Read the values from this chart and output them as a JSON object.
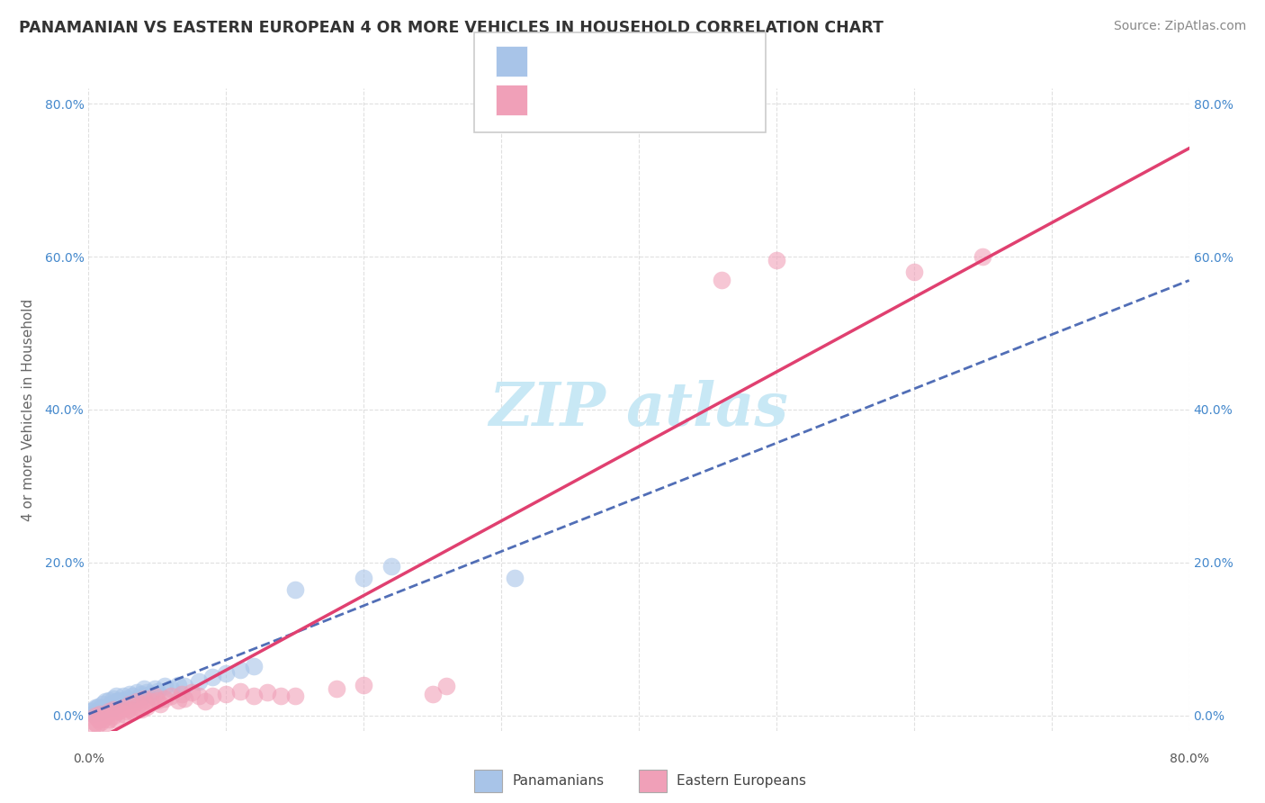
{
  "title": "PANAMANIAN VS EASTERN EUROPEAN 4 OR MORE VEHICLES IN HOUSEHOLD CORRELATION CHART",
  "source": "Source: ZipAtlas.com",
  "ylabel": "4 or more Vehicles in Household",
  "xrange": [
    0,
    0.8
  ],
  "yrange": [
    -0.02,
    0.82
  ],
  "pan_color": "#a8c4e8",
  "ee_color": "#f0a0b8",
  "pan_line_color": "#3355aa",
  "ee_line_color": "#e04070",
  "pan_scatter": [
    [
      0.002,
      0.005
    ],
    [
      0.003,
      0.002
    ],
    [
      0.004,
      0.008
    ],
    [
      0.005,
      0.003
    ],
    [
      0.005,
      0.01
    ],
    [
      0.006,
      0.006
    ],
    [
      0.007,
      0.004
    ],
    [
      0.007,
      0.012
    ],
    [
      0.008,
      0.008
    ],
    [
      0.009,
      0.005
    ],
    [
      0.01,
      0.01
    ],
    [
      0.01,
      0.015
    ],
    [
      0.012,
      0.008
    ],
    [
      0.012,
      0.018
    ],
    [
      0.014,
      0.012
    ],
    [
      0.015,
      0.01
    ],
    [
      0.015,
      0.02
    ],
    [
      0.016,
      0.015
    ],
    [
      0.018,
      0.012
    ],
    [
      0.018,
      0.022
    ],
    [
      0.02,
      0.018
    ],
    [
      0.02,
      0.025
    ],
    [
      0.022,
      0.015
    ],
    [
      0.022,
      0.02
    ],
    [
      0.025,
      0.018
    ],
    [
      0.025,
      0.025
    ],
    [
      0.028,
      0.022
    ],
    [
      0.03,
      0.02
    ],
    [
      0.03,
      0.028
    ],
    [
      0.032,
      0.025
    ],
    [
      0.035,
      0.022
    ],
    [
      0.035,
      0.03
    ],
    [
      0.038,
      0.028
    ],
    [
      0.04,
      0.025
    ],
    [
      0.04,
      0.035
    ],
    [
      0.042,
      0.03
    ],
    [
      0.045,
      0.028
    ],
    [
      0.048,
      0.035
    ],
    [
      0.05,
      0.032
    ],
    [
      0.055,
      0.038
    ],
    [
      0.06,
      0.035
    ],
    [
      0.065,
      0.04
    ],
    [
      0.07,
      0.038
    ],
    [
      0.08,
      0.045
    ],
    [
      0.09,
      0.05
    ],
    [
      0.1,
      0.055
    ],
    [
      0.11,
      0.06
    ],
    [
      0.12,
      0.065
    ],
    [
      0.15,
      0.165
    ],
    [
      0.2,
      0.18
    ],
    [
      0.22,
      0.195
    ],
    [
      0.31,
      0.18
    ]
  ],
  "ee_scatter": [
    [
      0.003,
      -0.015
    ],
    [
      0.004,
      -0.008
    ],
    [
      0.005,
      0.0
    ],
    [
      0.006,
      -0.012
    ],
    [
      0.007,
      -0.005
    ],
    [
      0.008,
      0.002
    ],
    [
      0.009,
      -0.008
    ],
    [
      0.01,
      -0.005
    ],
    [
      0.012,
      0.0
    ],
    [
      0.013,
      -0.01
    ],
    [
      0.015,
      -0.005
    ],
    [
      0.015,
      0.005
    ],
    [
      0.018,
      0.0
    ],
    [
      0.018,
      0.008
    ],
    [
      0.02,
      -0.005
    ],
    [
      0.02,
      0.005
    ],
    [
      0.022,
      0.005
    ],
    [
      0.025,
      0.002
    ],
    [
      0.025,
      0.01
    ],
    [
      0.028,
      0.005
    ],
    [
      0.03,
      0.008
    ],
    [
      0.03,
      0.015
    ],
    [
      0.032,
      0.005
    ],
    [
      0.035,
      0.012
    ],
    [
      0.035,
      0.018
    ],
    [
      0.038,
      0.008
    ],
    [
      0.04,
      0.015
    ],
    [
      0.04,
      0.022
    ],
    [
      0.042,
      0.012
    ],
    [
      0.045,
      0.018
    ],
    [
      0.048,
      0.025
    ],
    [
      0.05,
      0.02
    ],
    [
      0.052,
      0.015
    ],
    [
      0.055,
      0.022
    ],
    [
      0.06,
      0.025
    ],
    [
      0.065,
      0.02
    ],
    [
      0.068,
      0.028
    ],
    [
      0.07,
      0.022
    ],
    [
      0.075,
      0.03
    ],
    [
      0.08,
      0.025
    ],
    [
      0.085,
      0.018
    ],
    [
      0.09,
      0.025
    ],
    [
      0.1,
      0.028
    ],
    [
      0.11,
      0.032
    ],
    [
      0.12,
      0.025
    ],
    [
      0.13,
      0.03
    ],
    [
      0.14,
      0.025
    ],
    [
      0.15,
      0.025
    ],
    [
      0.18,
      0.035
    ],
    [
      0.2,
      0.04
    ],
    [
      0.25,
      0.028
    ],
    [
      0.26,
      0.038
    ],
    [
      0.46,
      0.57
    ],
    [
      0.5,
      0.595
    ],
    [
      0.6,
      0.58
    ],
    [
      0.65,
      0.6
    ]
  ],
  "watermark_color": "#c8e8f5",
  "background_color": "#ffffff",
  "grid_color": "#cccccc"
}
